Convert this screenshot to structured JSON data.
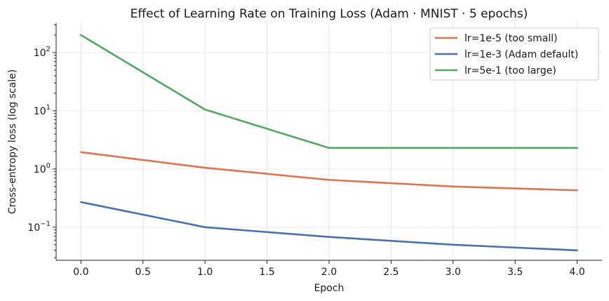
{
  "chart_data": {
    "type": "line",
    "title": "Effect of Learning Rate on Training Loss  (Adam · MNIST · 5 epochs)",
    "xlabel": "Epoch",
    "ylabel": "Cross-entropy loss (log scale)",
    "xlim": [
      -0.2,
      4.2
    ],
    "ylim": [
      0.027,
      320
    ],
    "yscale": "log",
    "grid": true,
    "legend_position": "top-right",
    "x": [
      0,
      1,
      2,
      3,
      4
    ],
    "x_ticks": [
      "0.0",
      "0.5",
      "1.0",
      "1.5",
      "2.0",
      "2.5",
      "3.0",
      "3.5",
      "4.0"
    ],
    "y_ticks": [
      {
        "base": "10",
        "exp": "−1",
        "value": 0.1
      },
      {
        "base": "10",
        "exp": "0",
        "value": 1
      },
      {
        "base": "10",
        "exp": "1",
        "value": 10
      },
      {
        "base": "10",
        "exp": "2",
        "value": 100
      }
    ],
    "series": [
      {
        "name": "lr=1e-5  (too small)",
        "color": "#dd7550",
        "values": [
          1.95,
          1.05,
          0.65,
          0.5,
          0.43
        ]
      },
      {
        "name": "lr=1e-3  (Adam default)",
        "color": "#4c70ad",
        "values": [
          0.27,
          0.1,
          0.068,
          0.05,
          0.04
        ]
      },
      {
        "name": "lr=5e-1  (too large)",
        "color": "#55a768",
        "values": [
          200,
          10.5,
          2.3,
          2.3,
          2.3
        ]
      }
    ]
  }
}
